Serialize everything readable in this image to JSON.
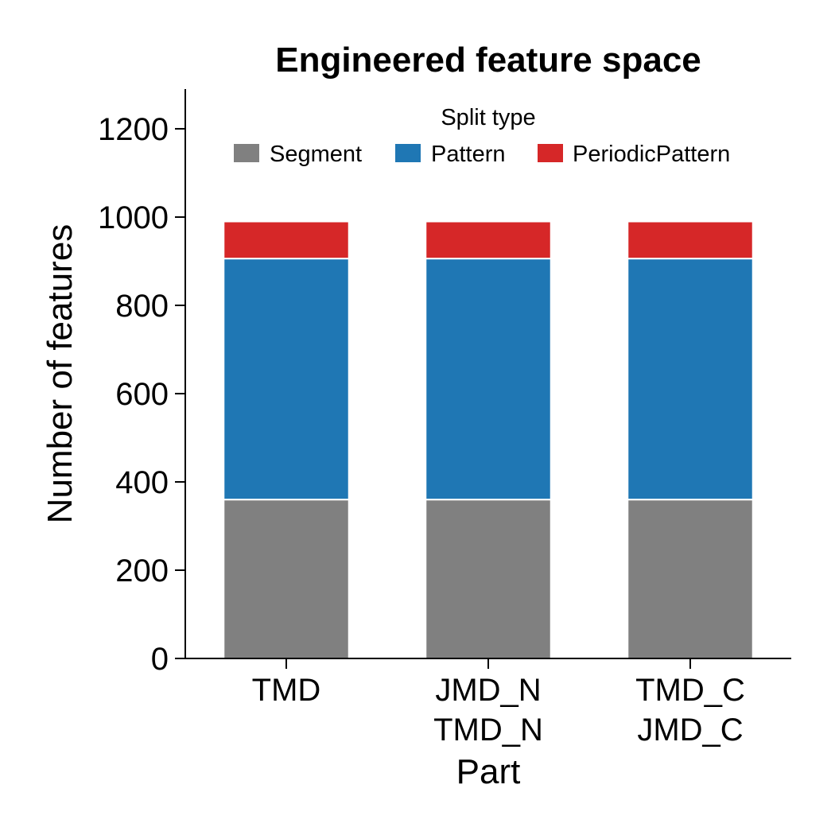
{
  "chart_data": {
    "type": "bar",
    "stacked": true,
    "title": "Engineered feature space",
    "xlabel": "Part",
    "ylabel": "Number of features",
    "categories": [
      [
        "TMD"
      ],
      [
        "JMD_N",
        "TMD_N"
      ],
      [
        "TMD_C",
        "JMD_C"
      ]
    ],
    "series": [
      {
        "name": "Segment",
        "values": [
          360,
          360,
          360
        ],
        "color": "#808080"
      },
      {
        "name": "Pattern",
        "values": [
          546,
          546,
          546
        ],
        "color": "#1f77b4"
      },
      {
        "name": "PeriodicPattern",
        "values": [
          84,
          84,
          84
        ],
        "color": "#d62728"
      }
    ],
    "ylim": [
      0,
      1290
    ],
    "yticks": [
      0,
      200,
      400,
      600,
      800,
      1000,
      1200
    ],
    "legend": {
      "title": "Split type",
      "placement": "top-center"
    },
    "grid": false
  }
}
